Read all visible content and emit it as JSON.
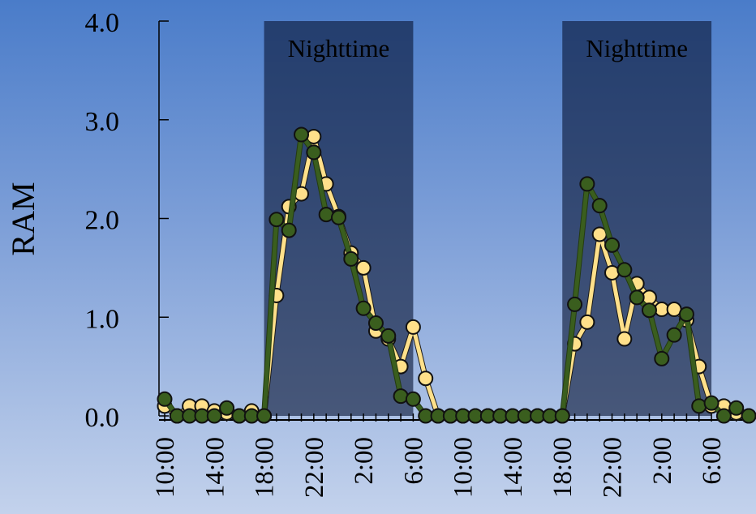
{
  "chart_data": {
    "type": "line",
    "title": "",
    "xlabel": "",
    "ylabel": "RAM",
    "ylim": [
      0,
      4
    ],
    "y_ticks": [
      "0.0",
      "1.0",
      "2.0",
      "3.0",
      "4.0"
    ],
    "x": [
      "10:00",
      "11:00",
      "12:00",
      "13:00",
      "14:00",
      "15:00",
      "16:00",
      "17:00",
      "18:00",
      "19:00",
      "20:00",
      "21:00",
      "22:00",
      "23:00",
      "0:00",
      "1:00",
      "2:00",
      "3:00",
      "4:00",
      "5:00",
      "6:00",
      "7:00",
      "8:00",
      "9:00",
      "10:00",
      "11:00",
      "12:00",
      "13:00",
      "14:00",
      "15:00",
      "16:00",
      "17:00",
      "18:00",
      "19:00",
      "20:00",
      "21:00",
      "22:00",
      "23:00",
      "0:00",
      "1:00",
      "2:00",
      "3:00",
      "4:00",
      "5:00",
      "6:00",
      "7:00",
      "8:00",
      "9:00"
    ],
    "x_tick_labels": [
      "10:00",
      "14:00",
      "18:00",
      "22:00",
      "2:00",
      "6:00",
      "10:00",
      "14:00",
      "18:00",
      "22:00",
      "2:00",
      "6:00"
    ],
    "shaded_regions": [
      {
        "label": "Nighttime",
        "start": "18:00",
        "end": "6:00",
        "day": 1
      },
      {
        "label": "Nighttime",
        "start": "18:00",
        "end": "6:00",
        "day": 2
      }
    ],
    "grid": false,
    "series": [
      {
        "color": "#ffe08a",
        "values": [
          0.1,
          0.0,
          0.1,
          0.1,
          0.05,
          0.03,
          0.0,
          0.05,
          0.0,
          1.22,
          2.12,
          2.25,
          2.83,
          2.35,
          2.02,
          1.65,
          1.5,
          0.86,
          0.78,
          0.5,
          0.9,
          0.38,
          0.0,
          0.0,
          0.0,
          0.0,
          0.0,
          0.0,
          0.0,
          0.0,
          0.0,
          0.0,
          0.0,
          0.73,
          0.95,
          1.84,
          1.45,
          0.78,
          1.34,
          1.2,
          1.08,
          1.08,
          0.97,
          0.5,
          0.1,
          0.1,
          0.03,
          0.0
        ]
      },
      {
        "color": "#3a5e1e",
        "values": [
          0.17,
          0.0,
          0.0,
          0.0,
          0.0,
          0.08,
          0.0,
          0.0,
          0.0,
          1.99,
          1.88,
          2.85,
          2.67,
          2.04,
          2.01,
          1.59,
          1.09,
          0.94,
          0.81,
          0.2,
          0.17,
          0.0,
          0.0,
          0.0,
          0.0,
          0.0,
          0.0,
          0.0,
          0.0,
          0.0,
          0.0,
          0.0,
          0.0,
          1.13,
          2.35,
          2.13,
          1.73,
          1.48,
          1.2,
          1.07,
          0.58,
          0.82,
          1.03,
          0.1,
          0.13,
          0.0,
          0.08,
          0.0
        ]
      }
    ]
  }
}
